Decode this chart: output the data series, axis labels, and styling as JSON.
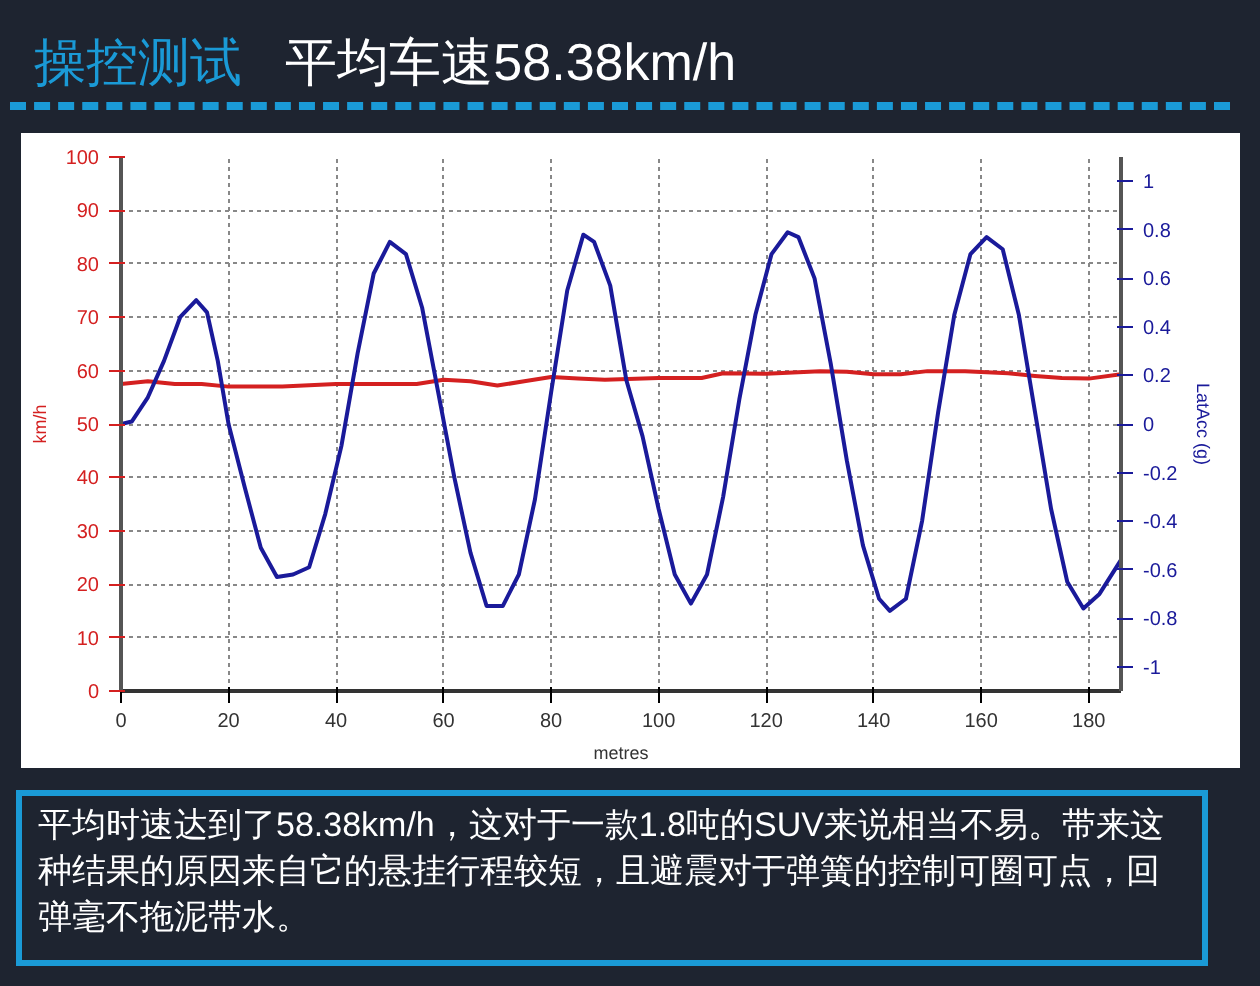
{
  "chart_data": {
    "type": "line",
    "title": "操控测试",
    "subtitle": "平均车速58.38km/h",
    "xlabel": "metres",
    "ylabel": "km/h",
    "y2label": "LatAcc (g)",
    "xlim": [
      0,
      186
    ],
    "xticks": [
      0,
      20,
      40,
      60,
      80,
      100,
      120,
      140,
      160,
      180
    ],
    "ylim": [
      0,
      100
    ],
    "yticks": [
      0,
      10,
      20,
      30,
      40,
      50,
      60,
      70,
      80,
      90,
      100
    ],
    "y2lim": [
      -1.1,
      1.1
    ],
    "y2ticks": [
      -1,
      -0.8,
      -0.6,
      -0.4,
      -0.2,
      0,
      0.2,
      0.4,
      0.6,
      0.8,
      1
    ],
    "grid": true,
    "line_style": "solid",
    "series": [
      {
        "color": "#d42020",
        "x": [
          0,
          5,
          10,
          15,
          20,
          30,
          40,
          55,
          60,
          65,
          70,
          75,
          80,
          85,
          90,
          100,
          108,
          112,
          120,
          130,
          135,
          140,
          145,
          150,
          157,
          165,
          170,
          175,
          180,
          186
        ],
        "values": [
          57.5,
          58,
          57.5,
          57.5,
          57,
          57,
          57.5,
          57.5,
          58.3,
          58,
          57.2,
          58,
          58.8,
          58.5,
          58.3,
          58.6,
          58.6,
          59.5,
          59.4,
          59.9,
          59.8,
          59.3,
          59.3,
          59.9,
          59.9,
          59.5,
          59,
          58.6,
          58.5,
          59.3
        ]
      },
      {
        "color": "#1a1a9a",
        "axis": "y2",
        "x": [
          0,
          2,
          5,
          8,
          11,
          14,
          16,
          18,
          20,
          23,
          26,
          29,
          32,
          35,
          38,
          41,
          44,
          47,
          50,
          53,
          56,
          59,
          62,
          65,
          68,
          71,
          74,
          77,
          80,
          83,
          86,
          88,
          91,
          94,
          97,
          100,
          103,
          106,
          109,
          112,
          115,
          118,
          121,
          124,
          126,
          129,
          132,
          135,
          138,
          141,
          143,
          146,
          149,
          152,
          155,
          158,
          161,
          164,
          167,
          170,
          173,
          176,
          179,
          182,
          186
        ],
        "values": [
          0,
          0.01,
          0.11,
          0.26,
          0.44,
          0.51,
          0.46,
          0.26,
          0,
          -0.26,
          -0.51,
          -0.63,
          -0.62,
          -0.59,
          -0.37,
          -0.09,
          0.29,
          0.62,
          0.75,
          0.7,
          0.48,
          0.13,
          -0.22,
          -0.53,
          -0.75,
          -0.75,
          -0.62,
          -0.31,
          0.13,
          0.55,
          0.78,
          0.75,
          0.57,
          0.18,
          -0.05,
          -0.35,
          -0.62,
          -0.74,
          -0.62,
          -0.3,
          0.1,
          0.45,
          0.7,
          0.79,
          0.77,
          0.6,
          0.25,
          -0.15,
          -0.5,
          -0.72,
          -0.77,
          -0.72,
          -0.4,
          0.05,
          0.45,
          0.7,
          0.77,
          0.72,
          0.45,
          0.05,
          -0.35,
          -0.65,
          -0.76,
          -0.7,
          -0.56
        ]
      }
    ],
    "annotations": [
      "平均时速达到了58.38km/h，这对于一款1.8吨的SUV来说相当不易。带来这种结果的原因来自它的悬挂行程较短，且避震对于弹簧的控制可圈可点，回弹毫不拖泥带水。"
    ]
  }
}
